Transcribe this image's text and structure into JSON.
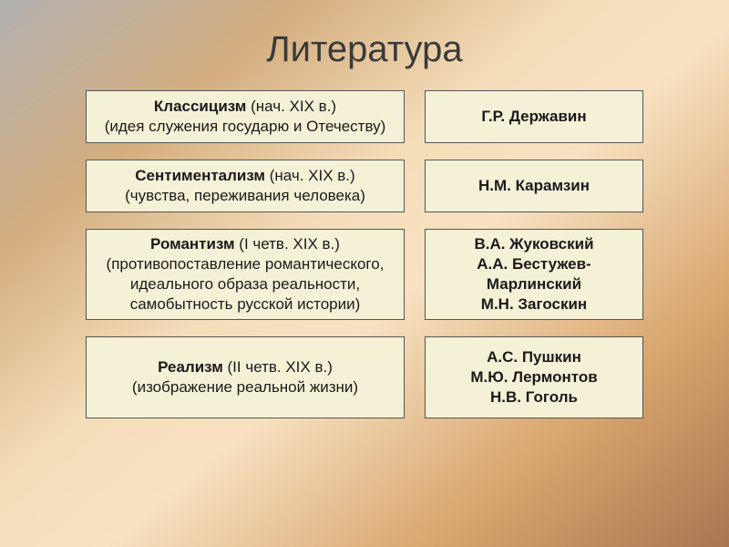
{
  "slide": {
    "title": "Литература",
    "background_gradient": [
      "#b3b0b0",
      "#d4ae7f",
      "#f4ddb9",
      "#f7e1c1",
      "#d9a66f",
      "#aa7550"
    ],
    "title_fontsize": 40,
    "title_color": "#3a3a3a"
  },
  "cells": {
    "background_color": "#f5f1d7",
    "border_color": "#555555",
    "text_color": "#1a1a1a",
    "fontsize": 17
  },
  "rows": [
    {
      "left": {
        "bold": "Классицизм",
        "plain": " (нач. ХIХ в.)",
        "desc": "(идея служения государю и Отечеству)"
      },
      "right": {
        "bold": "Г.Р. Державин"
      }
    },
    {
      "left": {
        "bold": "Сентиментализм",
        "plain": " (нач. ХIХ в.)",
        "desc": "(чувства, переживания человека)"
      },
      "right": {
        "bold": "Н.М. Карамзин"
      }
    },
    {
      "left": {
        "bold": "Романтизм",
        "plain": " (I четв. ХIХ в.)",
        "desc": "(противопоставление романтического, идеального образа реальности, самобытность русской истории)"
      },
      "right": {
        "l1": "В.А. Жуковский",
        "l2": "А.А. Бестужев-Марлинский",
        "l3": "М.Н. Загоскин"
      }
    },
    {
      "left": {
        "bold": "Реализм",
        "plain": " (II четв. ХIХ в.)",
        "desc": "(изображение реальной жизни)"
      },
      "right": {
        "l1": "А.С. Пушкин",
        "l2": "М.Ю. Лермонтов",
        "l3": "Н.В. Гоголь"
      }
    }
  ]
}
